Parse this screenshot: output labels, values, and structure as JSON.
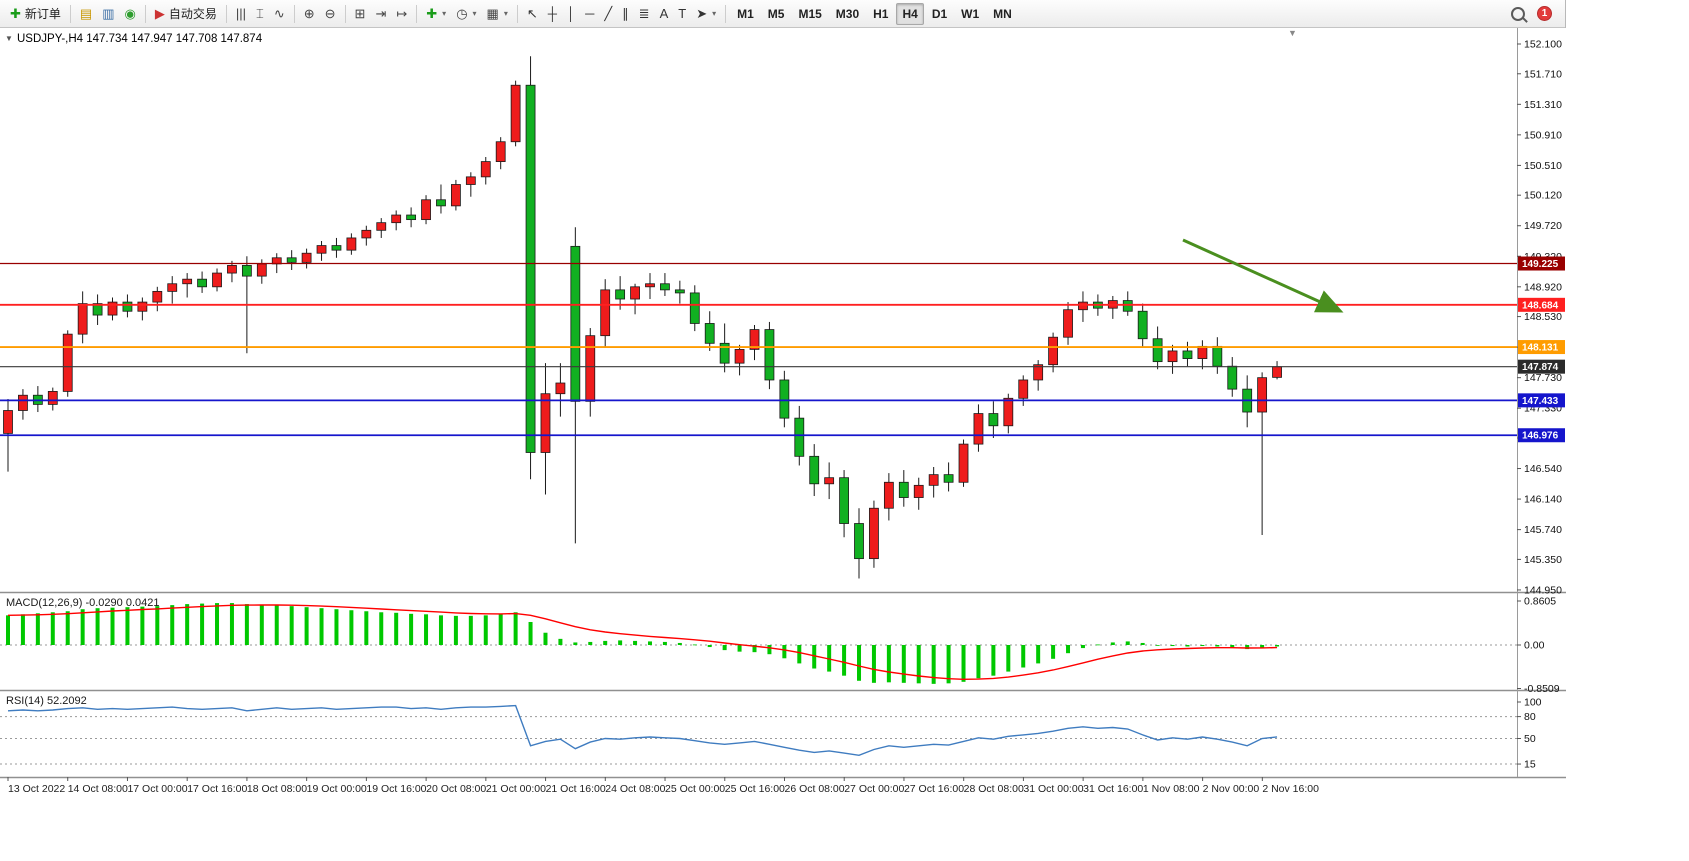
{
  "window": {
    "chart_title": "USDJPY-,H4 147.734 147.947 147.708 147.874",
    "collapse_marker": "▼",
    "chart_shift_marker": "▼"
  },
  "toolbar": {
    "active_timeframe": "H4",
    "groups": [
      {
        "name": "trade",
        "items": [
          {
            "name": "new-order-button",
            "glyph": "✚",
            "glyph_color": "#1a9c1a",
            "label": "新订单"
          }
        ]
      },
      {
        "name": "panels",
        "items": [
          {
            "name": "new-chart-button",
            "glyph": "▤",
            "glyph_color": "#c89600"
          },
          {
            "name": "profiles-button",
            "glyph": "▥",
            "glyph_color": "#3a6ea5"
          },
          {
            "name": "community-button",
            "glyph": "◉",
            "glyph_color": "#2e9e2e"
          }
        ]
      },
      {
        "name": "autotrade",
        "items": [
          {
            "name": "autotrading-button",
            "glyph": "▶",
            "glyph_color": "#cc3333",
            "label": "自动交易"
          }
        ]
      },
      {
        "name": "chart-type",
        "items": [
          {
            "name": "bar-chart-button",
            "glyph": "|||",
            "glyph_color": "#444444"
          },
          {
            "name": "candlestick-button",
            "glyph": "⌶",
            "glyph_color": "#444444"
          },
          {
            "name": "line-chart-button",
            "glyph": "∿",
            "glyph_color": "#444444"
          }
        ]
      },
      {
        "name": "zoom",
        "items": [
          {
            "name": "zoom-in-button",
            "glyph": "⊕",
            "glyph_color": "#444444"
          },
          {
            "name": "zoom-out-button",
            "glyph": "⊖",
            "glyph_color": "#444444"
          }
        ]
      },
      {
        "name": "layout",
        "items": [
          {
            "name": "tile-windows-button",
            "glyph": "⊞",
            "glyph_color": "#444444"
          },
          {
            "name": "autoscroll-button",
            "glyph": "⇥",
            "glyph_color": "#444444"
          },
          {
            "name": "chart-shift-button",
            "glyph": "↦",
            "glyph_color": "#444444"
          }
        ]
      },
      {
        "name": "insert",
        "items": [
          {
            "name": "indicators-button",
            "glyph": "✚",
            "glyph_color": "#1a9c1a",
            "caret": true
          },
          {
            "name": "periods-button",
            "glyph": "◷",
            "glyph_color": "#444444",
            "caret": true
          },
          {
            "name": "templates-button",
            "glyph": "▦",
            "glyph_color": "#444444",
            "caret": true
          }
        ]
      },
      {
        "name": "line-studies",
        "items": [
          {
            "name": "cursor-button",
            "glyph": "↖",
            "glyph_color": "#333333"
          },
          {
            "name": "crosshair-button",
            "glyph": "┼",
            "glyph_color": "#333333"
          },
          {
            "name": "vertical-line-button",
            "glyph": "│",
            "glyph_color": "#333333"
          },
          {
            "name": "horizontal-line-button",
            "glyph": "─",
            "glyph_color": "#333333"
          },
          {
            "name": "trendline-button",
            "glyph": "╱",
            "glyph_color": "#333333"
          },
          {
            "name": "channel-button",
            "glyph": "∥",
            "glyph_color": "#333333"
          },
          {
            "name": "fibonacci-button",
            "glyph": "≣",
            "glyph_color": "#333333"
          },
          {
            "name": "text-button",
            "glyph": "A",
            "glyph_color": "#333333"
          },
          {
            "name": "label-button",
            "glyph": "T",
            "glyph_color": "#333333"
          },
          {
            "name": "arrows-button",
            "glyph": "➤",
            "glyph_color": "#333333",
            "caret": true
          }
        ]
      },
      {
        "name": "timeframes",
        "items": [
          {
            "name": "tf-m1-button",
            "label": "M1"
          },
          {
            "name": "tf-m5-button",
            "label": "M5"
          },
          {
            "name": "tf-m15-button",
            "label": "M15"
          },
          {
            "name": "tf-m30-button",
            "label": "M30"
          },
          {
            "name": "tf-h1-button",
            "label": "H1"
          },
          {
            "name": "tf-h4-button",
            "label": "H4"
          },
          {
            "name": "tf-d1-button",
            "label": "D1"
          },
          {
            "name": "tf-w1-button",
            "label": "W1"
          },
          {
            "name": "tf-mn-button",
            "label": "MN"
          }
        ]
      }
    ],
    "right": {
      "notification_count": "1"
    }
  },
  "chart_data": {
    "type": "candlestick",
    "symbol_period": "USDJPY-,H4",
    "ohlc_display": {
      "open": "147.734",
      "high": "147.947",
      "low": "147.708",
      "close": "147.874"
    },
    "candle_up_color": "#ee1c1c",
    "candle_down_color": "#11b021",
    "price_axis_labels": [
      "152.100",
      "151.710",
      "151.310",
      "150.910",
      "150.510",
      "150.120",
      "149.720",
      "149.320",
      "148.920",
      "148.530",
      "148.130",
      "147.730",
      "147.330",
      "146.940",
      "146.540",
      "146.140",
      "145.740",
      "145.350",
      "144.950"
    ],
    "time_axis_labels": [
      "13 Oct 2022",
      "14 Oct 08:00",
      "17 Oct 00:00",
      "17 Oct 16:00",
      "18 Oct 08:00",
      "19 Oct 00:00",
      "19 Oct 16:00",
      "20 Oct 08:00",
      "21 Oct 00:00",
      "21 Oct 16:00",
      "24 Oct 08:00",
      "25 Oct 00:00",
      "25 Oct 16:00",
      "26 Oct 08:00",
      "27 Oct 00:00",
      "27 Oct 16:00",
      "28 Oct 08:00",
      "31 Oct 00:00",
      "31 Oct 16:00",
      "1 Nov 08:00",
      "2 Nov 00:00",
      "2 Nov 16:00"
    ],
    "candles": [
      [
        147.0,
        147.45,
        146.5,
        147.3
      ],
      [
        147.3,
        147.58,
        147.18,
        147.5
      ],
      [
        147.5,
        147.62,
        147.28,
        147.38
      ],
      [
        147.38,
        147.6,
        147.3,
        147.55
      ],
      [
        147.55,
        148.35,
        147.48,
        148.3
      ],
      [
        148.3,
        148.86,
        148.18,
        148.7
      ],
      [
        148.7,
        148.82,
        148.42,
        148.55
      ],
      [
        148.55,
        148.78,
        148.48,
        148.72
      ],
      [
        148.72,
        148.82,
        148.52,
        148.6
      ],
      [
        148.6,
        148.78,
        148.48,
        148.72
      ],
      [
        148.72,
        148.92,
        148.6,
        148.86
      ],
      [
        148.86,
        149.06,
        148.7,
        148.96
      ],
      [
        148.96,
        149.1,
        148.78,
        149.02
      ],
      [
        149.02,
        149.12,
        148.84,
        148.92
      ],
      [
        148.92,
        149.16,
        148.86,
        149.1
      ],
      [
        149.1,
        149.26,
        148.98,
        149.2
      ],
      [
        149.2,
        149.32,
        148.05,
        149.06
      ],
      [
        149.06,
        149.28,
        148.96,
        149.22
      ],
      [
        149.22,
        149.36,
        149.1,
        149.3
      ],
      [
        149.3,
        149.4,
        149.14,
        149.24
      ],
      [
        149.24,
        149.42,
        149.16,
        149.36
      ],
      [
        149.36,
        149.52,
        149.26,
        149.46
      ],
      [
        149.46,
        149.56,
        149.3,
        149.4
      ],
      [
        149.4,
        149.62,
        149.34,
        149.56
      ],
      [
        149.56,
        149.72,
        149.46,
        149.66
      ],
      [
        149.66,
        149.82,
        149.56,
        149.76
      ],
      [
        149.76,
        149.92,
        149.66,
        149.86
      ],
      [
        149.86,
        149.96,
        149.7,
        149.8
      ],
      [
        149.8,
        150.12,
        149.74,
        150.06
      ],
      [
        150.06,
        150.26,
        149.88,
        149.98
      ],
      [
        149.98,
        150.32,
        149.92,
        150.26
      ],
      [
        150.26,
        150.42,
        150.1,
        150.36
      ],
      [
        150.36,
        150.62,
        150.26,
        150.56
      ],
      [
        150.56,
        150.88,
        150.46,
        150.82
      ],
      [
        150.82,
        151.62,
        150.76,
        151.56
      ],
      [
        151.56,
        151.94,
        146.4,
        146.75
      ],
      [
        146.75,
        147.92,
        146.2,
        147.52
      ],
      [
        147.52,
        147.92,
        147.22,
        147.66
      ],
      [
        149.45,
        149.7,
        145.56,
        147.42
      ],
      [
        147.42,
        148.38,
        147.22,
        148.28
      ],
      [
        148.28,
        149.02,
        148.12,
        148.88
      ],
      [
        148.88,
        149.06,
        148.62,
        148.76
      ],
      [
        148.76,
        148.96,
        148.56,
        148.92
      ],
      [
        148.92,
        149.1,
        148.76,
        148.96
      ],
      [
        148.96,
        149.1,
        148.8,
        148.88
      ],
      [
        148.88,
        149.0,
        148.7,
        148.84
      ],
      [
        148.84,
        148.94,
        148.34,
        148.44
      ],
      [
        148.44,
        148.6,
        148.08,
        148.18
      ],
      [
        148.18,
        148.44,
        147.8,
        147.92
      ],
      [
        147.92,
        148.16,
        147.76,
        148.1
      ],
      [
        148.1,
        148.42,
        147.96,
        148.36
      ],
      [
        148.36,
        148.46,
        147.58,
        147.7
      ],
      [
        147.7,
        147.82,
        147.08,
        147.2
      ],
      [
        147.2,
        147.36,
        146.58,
        146.7
      ],
      [
        146.7,
        146.86,
        146.18,
        146.34
      ],
      [
        146.34,
        146.62,
        146.14,
        146.42
      ],
      [
        146.42,
        146.52,
        145.64,
        145.82
      ],
      [
        145.82,
        146.02,
        145.1,
        145.36
      ],
      [
        145.36,
        146.12,
        145.24,
        146.02
      ],
      [
        146.02,
        146.48,
        145.86,
        146.36
      ],
      [
        146.36,
        146.52,
        146.04,
        146.16
      ],
      [
        146.16,
        146.42,
        146.0,
        146.32
      ],
      [
        146.32,
        146.56,
        146.16,
        146.46
      ],
      [
        146.46,
        146.62,
        146.24,
        146.36
      ],
      [
        146.36,
        146.92,
        146.3,
        146.86
      ],
      [
        146.86,
        147.38,
        146.76,
        147.26
      ],
      [
        147.26,
        147.42,
        146.94,
        147.1
      ],
      [
        147.1,
        147.52,
        147.0,
        147.46
      ],
      [
        147.46,
        147.76,
        147.36,
        147.7
      ],
      [
        147.7,
        147.96,
        147.56,
        147.9
      ],
      [
        147.9,
        148.32,
        147.8,
        148.26
      ],
      [
        148.26,
        148.72,
        148.16,
        148.62
      ],
      [
        148.62,
        148.86,
        148.46,
        148.72
      ],
      [
        148.72,
        148.82,
        148.54,
        148.64
      ],
      [
        148.64,
        148.8,
        148.5,
        148.74
      ],
      [
        148.74,
        148.86,
        148.54,
        148.6
      ],
      [
        148.6,
        148.7,
        148.14,
        148.24
      ],
      [
        148.24,
        148.4,
        147.84,
        147.94
      ],
      [
        147.94,
        148.16,
        147.78,
        148.08
      ],
      [
        148.08,
        148.2,
        147.88,
        147.98
      ],
      [
        147.98,
        148.22,
        147.84,
        148.14
      ],
      [
        148.14,
        148.26,
        147.78,
        147.88
      ],
      [
        147.88,
        148.0,
        147.48,
        147.58
      ],
      [
        147.58,
        147.76,
        147.08,
        147.28
      ],
      [
        147.28,
        147.8,
        145.67,
        147.73
      ],
      [
        147.734,
        147.947,
        147.708,
        147.874
      ]
    ],
    "horizontal_lines": [
      {
        "price": 149.225,
        "label": "149.225",
        "color": "#990000"
      },
      {
        "price": 148.684,
        "label": "148.684",
        "color": "#ff2020"
      },
      {
        "price": 148.131,
        "label": "148.131",
        "color": "#ff9c00"
      },
      {
        "price": 147.433,
        "label": "147.433",
        "color": "#1515cc"
      },
      {
        "price": 146.976,
        "label": "146.976",
        "color": "#1515cc"
      }
    ],
    "current_price_line": {
      "price": 147.874,
      "label": "147.874",
      "color": "#3a3a3a"
    },
    "annotation_arrow": {
      "color": "#4a8f1f"
    },
    "indicators": [
      {
        "name": "MACD",
        "display_label": "MACD(12,26,9) -0.0290 0.0421",
        "main_value": "-0.0290",
        "signal_value": "0.0421",
        "axis_labels": [
          "0.8605",
          "0.00",
          "-0.8509"
        ],
        "histogram_color": "#00c800",
        "signal_color": "#ff0000",
        "histogram": [
          0.58,
          0.6,
          0.62,
          0.64,
          0.66,
          0.7,
          0.72,
          0.73,
          0.74,
          0.75,
          0.76,
          0.78,
          0.8,
          0.81,
          0.82,
          0.82,
          0.8,
          0.79,
          0.78,
          0.76,
          0.74,
          0.72,
          0.7,
          0.68,
          0.66,
          0.64,
          0.63,
          0.61,
          0.6,
          0.58,
          0.57,
          0.57,
          0.58,
          0.6,
          0.64,
          0.45,
          0.24,
          0.12,
          0.05,
          0.06,
          0.08,
          0.09,
          0.08,
          0.07,
          0.06,
          0.04,
          0.01,
          -0.04,
          -0.1,
          -0.13,
          -0.14,
          -0.18,
          -0.26,
          -0.36,
          -0.46,
          -0.52,
          -0.6,
          -0.7,
          -0.74,
          -0.73,
          -0.74,
          -0.75,
          -0.76,
          -0.75,
          -0.72,
          -0.65,
          -0.6,
          -0.52,
          -0.44,
          -0.36,
          -0.27,
          -0.16,
          -0.06,
          0.01,
          0.05,
          0.07,
          0.04,
          0.0,
          -0.02,
          -0.03,
          -0.02,
          -0.03,
          -0.05,
          -0.08,
          -0.05,
          -0.029
        ]
      },
      {
        "name": "RSI",
        "display_label": "RSI(14) 52.2092",
        "value": "52.2092",
        "axis_labels": [
          "100",
          "80",
          "50",
          "15"
        ],
        "levels": [
          80,
          50,
          15
        ],
        "line_color": "#3f7cc0",
        "values": [
          88,
          89,
          88,
          89,
          91,
          92,
          90,
          91,
          90,
          91,
          92,
          93,
          91,
          90,
          91,
          92,
          88,
          90,
          92,
          90,
          91,
          92,
          90,
          91,
          92,
          93,
          93,
          91,
          92,
          90,
          92,
          93,
          93,
          94,
          95,
          40,
          46,
          49,
          36,
          45,
          50,
          49,
          51,
          52,
          51,
          50,
          47,
          44,
          42,
          44,
          46,
          42,
          38,
          34,
          31,
          33,
          30,
          27,
          35,
          40,
          38,
          40,
          42,
          41,
          46,
          51,
          49,
          53,
          55,
          57,
          60,
          64,
          66,
          64,
          65,
          63,
          55,
          48,
          51,
          49,
          52,
          49,
          45,
          40,
          50,
          52.2
        ]
      }
    ]
  }
}
